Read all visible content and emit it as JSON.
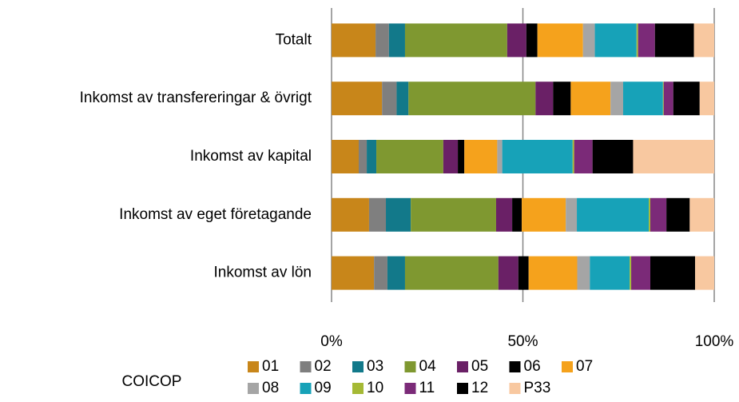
{
  "chart_data": {
    "type": "stacked_bar_horizontal",
    "categories": [
      "Totalt",
      "Inkomst av transfereringar & övrigt",
      "Inkomst av kapital",
      "Inkomst av eget företagande",
      "Inkomst av lön"
    ],
    "legend_title": "COICOP",
    "xlim": [
      0,
      100
    ],
    "xticks": [
      {
        "value": 0,
        "label": "0%"
      },
      {
        "value": 50,
        "label": "50%"
      },
      {
        "value": 100,
        "label": "100%"
      }
    ],
    "grid": true,
    "series": [
      {
        "name": "01",
        "color": "#c8861a",
        "values": [
          11.5,
          13.2,
          7.1,
          9.8,
          11.1
        ]
      },
      {
        "name": "02",
        "color": "#7f7f7f",
        "values": [
          3.5,
          3.8,
          2.1,
          4.4,
          3.5
        ]
      },
      {
        "name": "03",
        "color": "#12798a",
        "values": [
          4.2,
          3.1,
          2.5,
          6.5,
          4.6
        ]
      },
      {
        "name": "04",
        "color": "#7f9830",
        "values": [
          26.7,
          33.2,
          17.5,
          22.3,
          24.4
        ]
      },
      {
        "name": "05",
        "color": "#6a2066",
        "values": [
          5.0,
          4.6,
          3.8,
          4.2,
          5.2
        ]
      },
      {
        "name": "06",
        "color": "#000000",
        "values": [
          2.9,
          4.6,
          1.7,
          2.5,
          2.7
        ]
      },
      {
        "name": "07",
        "color": "#f5a21c",
        "values": [
          11.9,
          10.4,
          8.6,
          11.5,
          12.7
        ]
      },
      {
        "name": "08",
        "color": "#a5a5a5",
        "values": [
          3.1,
          3.3,
          1.3,
          2.9,
          3.3
        ]
      },
      {
        "name": "09",
        "color": "#17a2b8",
        "values": [
          10.9,
          10.4,
          18.4,
          18.8,
          10.4
        ]
      },
      {
        "name": "10",
        "color": "#a5b935",
        "values": [
          0.4,
          0.2,
          0.4,
          0.4,
          0.4
        ]
      },
      {
        "name": "11",
        "color": "#7b2a78",
        "values": [
          4.4,
          2.5,
          4.8,
          4.2,
          5.0
        ]
      },
      {
        "name": "12",
        "color": "#000000",
        "values": [
          10.2,
          6.9,
          10.6,
          6.1,
          11.7
        ]
      },
      {
        "name": "P33",
        "color": "#f8c8a0",
        "values": [
          5.3,
          3.8,
          21.2,
          6.4,
          5.0
        ]
      }
    ]
  }
}
